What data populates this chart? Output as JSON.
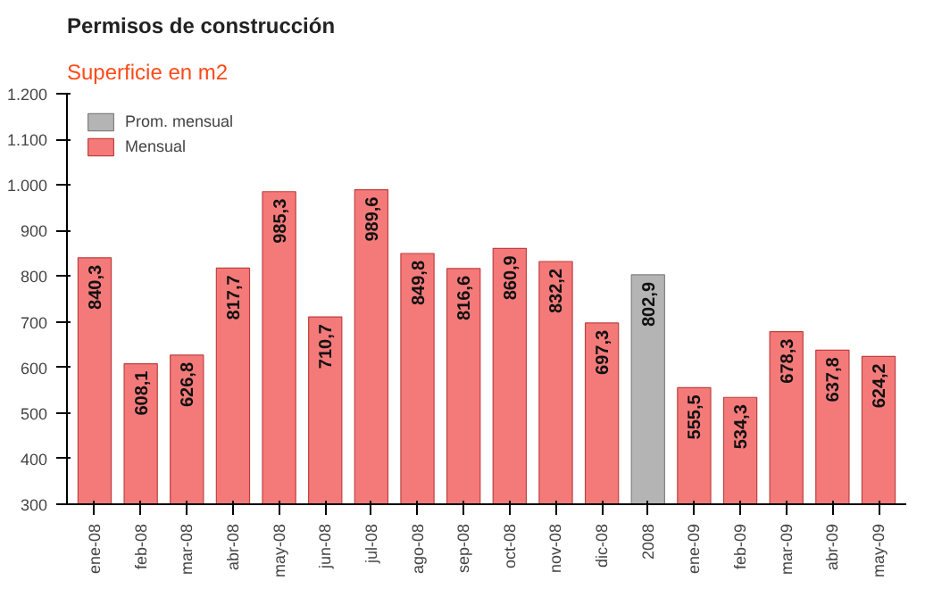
{
  "chart_data": {
    "type": "bar",
    "title": "Permisos de construcción",
    "subtitle": "Superficie en m2",
    "categories": [
      "ene-08",
      "feb-08",
      "mar-08",
      "abr-08",
      "may-08",
      "jun-08",
      "jul-08",
      "ago-08",
      "sep-08",
      "oct-08",
      "nov-08",
      "dic-08",
      "2008",
      "ene-09",
      "feb-09",
      "mar-09",
      "abr-09",
      "may-09"
    ],
    "series": [
      {
        "name": "Prom. mensual",
        "color": "#b4b4b4",
        "values": [
          null,
          null,
          null,
          null,
          null,
          null,
          null,
          null,
          null,
          null,
          null,
          null,
          802.9,
          null,
          null,
          null,
          null,
          null
        ],
        "value_labels": [
          null,
          null,
          null,
          null,
          null,
          null,
          null,
          null,
          null,
          null,
          null,
          null,
          "802,9",
          null,
          null,
          null,
          null,
          null
        ]
      },
      {
        "name": "Mensual",
        "color": "#f47a7a",
        "values": [
          840.3,
          608.1,
          626.8,
          817.7,
          985.3,
          710.7,
          989.6,
          849.8,
          816.6,
          860.9,
          832.2,
          697.3,
          null,
          555.5,
          534.3,
          678.3,
          637.8,
          624.2
        ],
        "value_labels": [
          "840,3",
          "608,1",
          "626,8",
          "817,7",
          "985,3",
          "710,7",
          "989,6",
          "849,8",
          "816,6",
          "860,9",
          "832,2",
          "697,3",
          null,
          "555,5",
          "534,3",
          "678,3",
          "637,8",
          "624,2"
        ]
      }
    ],
    "ylim": [
      300,
      1200
    ],
    "yticks": [
      300,
      400,
      500,
      600,
      700,
      800,
      900,
      {
        "value": 1000,
        "label": "1.000"
      },
      {
        "value": 1100,
        "label": "1.100"
      },
      {
        "value": 1200,
        "label": "1.200"
      }
    ],
    "grid": false,
    "legend": "top left"
  }
}
